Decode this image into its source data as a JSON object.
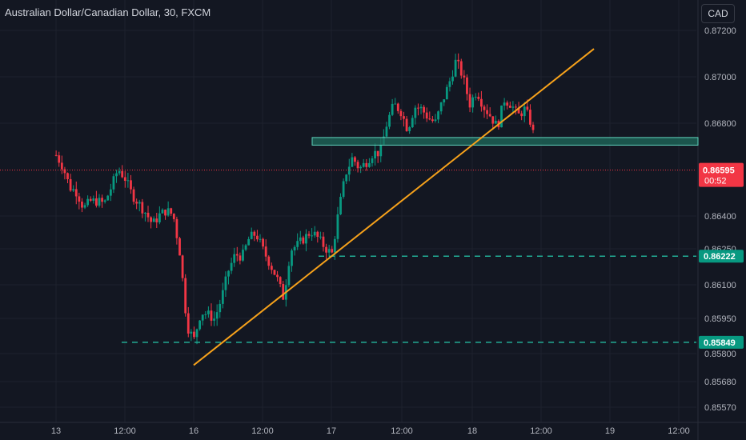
{
  "header": {
    "symbol_title": "Australian Dollar/Canadian Dollar, 30, FXCM",
    "currency_button": "CAD"
  },
  "colors": {
    "background": "#131722",
    "grid": "#1e222d",
    "axis_text": "#b2b5be",
    "up": "#089981",
    "down": "#f23645",
    "trendline": "#f7a21b",
    "zone_fill": "#1f6b5c",
    "zone_border": "#5fd4bd",
    "level_line": "#22ab94",
    "price_label_bg": "#f23645",
    "level_label_bg": "#089981"
  },
  "price_axis": {
    "ticks": [
      "0.87200",
      "0.87000",
      "0.86800",
      "0.86400",
      "0.86250",
      "0.86100",
      "0.85950",
      "0.85800",
      "0.85680",
      "0.85570"
    ]
  },
  "time_axis": {
    "ticks": [
      "13",
      "12:00",
      "16",
      "12:00",
      "17",
      "12:00",
      "18",
      "12:00",
      "19",
      "12:00"
    ]
  },
  "current_price": {
    "value": "0.86595",
    "countdown": "00:52"
  },
  "levels": [
    {
      "value": "0.86222",
      "price": 0.86222
    },
    {
      "value": "0.85849",
      "price": 0.85849
    }
  ],
  "drawings": {
    "trendline": {
      "start": {
        "time": "16 00:00",
        "price": 0.8575
      },
      "end": {
        "time": "19 00:00",
        "price": 0.8712
      }
    },
    "resistance_zone": {
      "price_top": 0.86736,
      "price_bottom": 0.86703
    }
  },
  "chart_data": {
    "type": "candlestick",
    "symbol": "AUD/CAD",
    "timeframe": "30",
    "y_range": [
      0.8552,
      0.8725
    ],
    "x_days": [
      "13",
      "16",
      "17",
      "18",
      "19"
    ],
    "close_path": [
      [
        0,
        0.8666
      ],
      [
        0.05,
        0.8661
      ],
      [
        0.1,
        0.8652
      ],
      [
        0.15,
        0.865
      ],
      [
        0.2,
        0.8643
      ],
      [
        0.25,
        0.8646
      ],
      [
        0.3,
        0.8646
      ],
      [
        0.35,
        0.8645
      ],
      [
        0.4,
        0.8652
      ],
      [
        0.45,
        0.866
      ],
      [
        0.5,
        0.8656
      ],
      [
        0.55,
        0.8649
      ],
      [
        0.6,
        0.8645
      ],
      [
        0.65,
        0.8641
      ],
      [
        0.7,
        0.8636
      ],
      [
        0.75,
        0.864
      ],
      [
        0.8,
        0.8642
      ],
      [
        0.85,
        0.864
      ],
      [
        0.9,
        0.8623
      ],
      [
        0.95,
        0.8592
      ],
      [
        1.0,
        0.8586
      ],
      [
        1.05,
        0.8598
      ],
      [
        1.1,
        0.8597
      ],
      [
        1.15,
        0.8595
      ],
      [
        1.2,
        0.8604
      ],
      [
        1.25,
        0.8616
      ],
      [
        1.3,
        0.8623
      ],
      [
        1.35,
        0.8622
      ],
      [
        1.4,
        0.863
      ],
      [
        1.45,
        0.8632
      ],
      [
        1.5,
        0.8625
      ],
      [
        1.55,
        0.8619
      ],
      [
        1.6,
        0.8613
      ],
      [
        1.65,
        0.8604
      ],
      [
        1.7,
        0.8625
      ],
      [
        1.75,
        0.8627
      ],
      [
        1.8,
        0.863
      ],
      [
        1.85,
        0.8633
      ],
      [
        1.9,
        0.863
      ],
      [
        1.95,
        0.8626
      ],
      [
        2.0,
        0.8623
      ],
      [
        2.05,
        0.8642
      ],
      [
        2.1,
        0.8658
      ],
      [
        2.15,
        0.8665
      ],
      [
        2.2,
        0.866
      ],
      [
        2.25,
        0.8663
      ],
      [
        2.3,
        0.8667
      ],
      [
        2.35,
        0.8667
      ],
      [
        2.4,
        0.868
      ],
      [
        2.45,
        0.8688
      ],
      [
        2.5,
        0.8685
      ],
      [
        2.55,
        0.8677
      ],
      [
        2.6,
        0.8687
      ],
      [
        2.65,
        0.8686
      ],
      [
        2.7,
        0.8682
      ],
      [
        2.75,
        0.868
      ],
      [
        2.8,
        0.8689
      ],
      [
        2.85,
        0.8697
      ],
      [
        2.9,
        0.8707
      ],
      [
        2.95,
        0.87
      ],
      [
        3.0,
        0.8688
      ],
      [
        3.05,
        0.8694
      ],
      [
        3.1,
        0.8687
      ],
      [
        3.15,
        0.8683
      ],
      [
        3.2,
        0.8678
      ],
      [
        3.25,
        0.869
      ],
      [
        3.3,
        0.8688
      ],
      [
        3.35,
        0.8683
      ],
      [
        3.4,
        0.8686
      ],
      [
        3.45,
        0.8679
      ],
      [
        3.5,
        0.866
      ]
    ]
  }
}
